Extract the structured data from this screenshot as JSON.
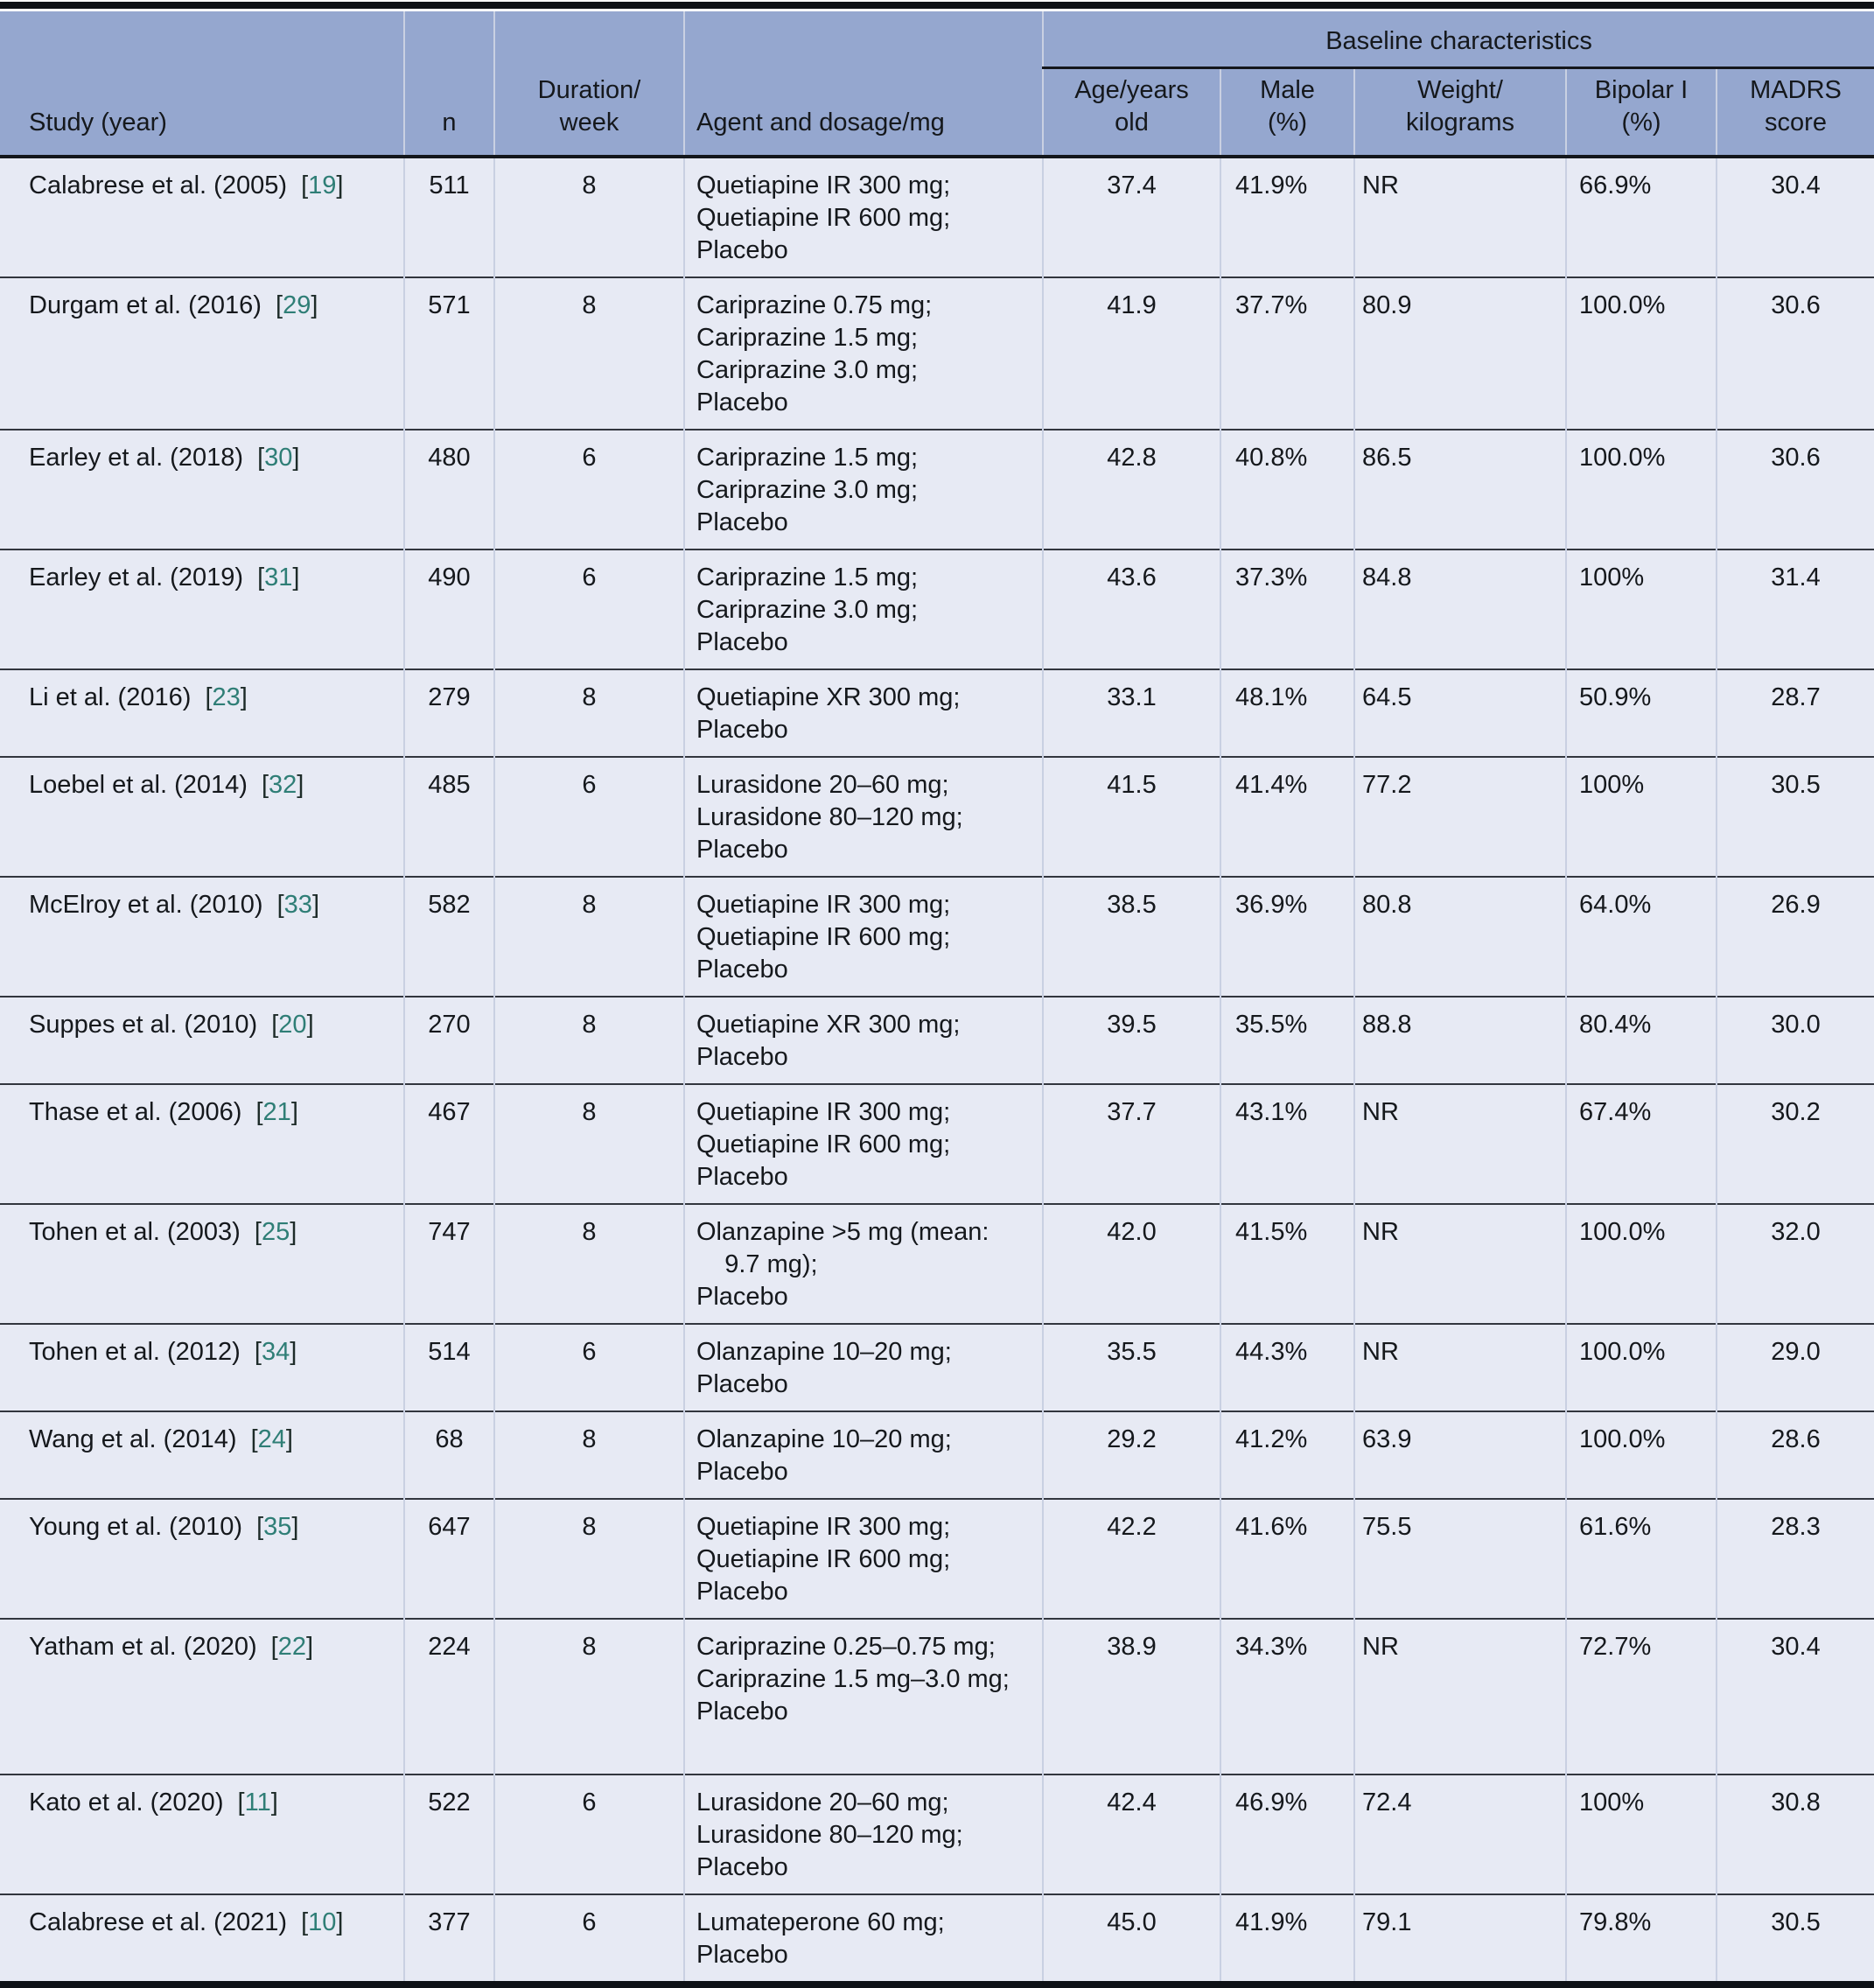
{
  "table": {
    "group_header": "Baseline characteristics",
    "ref_bracket_open": "[",
    "ref_bracket_close": "]",
    "columns": [
      {
        "lines": [
          "Study (year)"
        ]
      },
      {
        "lines": [
          "n"
        ]
      },
      {
        "lines": [
          "Duration/",
          "week"
        ]
      },
      {
        "lines": [
          "Agent and dosage/mg"
        ]
      },
      {
        "lines": [
          "Age/years",
          "old"
        ]
      },
      {
        "lines": [
          "Male",
          "(%)"
        ]
      },
      {
        "lines": [
          "Weight/",
          "kilograms"
        ]
      },
      {
        "lines": [
          "Bipolar I",
          "(%)"
        ]
      },
      {
        "lines": [
          "MADRS",
          "score"
        ]
      }
    ],
    "rows": [
      {
        "study": "Calabrese et al. (2005)",
        "ref": "19",
        "n": "511",
        "duration": "8",
        "agent_lines": [
          "Quetiapine IR 300 mg;",
          "Quetiapine IR 600 mg;",
          "Placebo"
        ],
        "age": "37.4",
        "male": "41.9%",
        "weight": "NR",
        "bipolar": "66.9%",
        "madrs": "30.4"
      },
      {
        "study": "Durgam et al. (2016)",
        "ref": "29",
        "n": "571",
        "duration": "8",
        "agent_lines": [
          "Cariprazine 0.75 mg;",
          "Cariprazine 1.5 mg;",
          "Cariprazine 3.0 mg;",
          "Placebo"
        ],
        "age": "41.9",
        "male": "37.7%",
        "weight": "80.9",
        "bipolar": "100.0%",
        "madrs": "30.6"
      },
      {
        "study": "Earley et al. (2018)",
        "ref": "30",
        "n": "480",
        "duration": "6",
        "agent_lines": [
          "Cariprazine 1.5 mg;",
          "Cariprazine 3.0 mg;",
          "Placebo"
        ],
        "age": "42.8",
        "male": "40.8%",
        "weight": "86.5",
        "bipolar": "100.0%",
        "madrs": "30.6"
      },
      {
        "study": "Earley et al. (2019)",
        "ref": "31",
        "n": "490",
        "duration": "6",
        "agent_lines": [
          "Cariprazine 1.5 mg;",
          "Cariprazine 3.0 mg;",
          "Placebo"
        ],
        "age": "43.6",
        "male": "37.3%",
        "weight": "84.8",
        "bipolar": "100%",
        "madrs": "31.4"
      },
      {
        "study": "Li et al. (2016)",
        "ref": "23",
        "n": "279",
        "duration": "8",
        "agent_lines": [
          "Quetiapine XR 300 mg;",
          "Placebo"
        ],
        "age": "33.1",
        "male": "48.1%",
        "weight": "64.5",
        "bipolar": "50.9%",
        "madrs": "28.7"
      },
      {
        "study": "Loebel et al. (2014)",
        "ref": "32",
        "n": "485",
        "duration": "6",
        "agent_lines": [
          "Lurasidone 20–60 mg;",
          "Lurasidone 80–120 mg;",
          "Placebo"
        ],
        "age": "41.5",
        "male": "41.4%",
        "weight": "77.2",
        "bipolar": "100%",
        "madrs": "30.5"
      },
      {
        "study": "McElroy et al. (2010)",
        "ref": "33",
        "n": "582",
        "duration": "8",
        "agent_lines": [
          "Quetiapine IR 300 mg;",
          "Quetiapine IR 600 mg;",
          "Placebo"
        ],
        "age": "38.5",
        "male": "36.9%",
        "weight": "80.8",
        "bipolar": "64.0%",
        "madrs": "26.9"
      },
      {
        "study": "Suppes et al. (2010)",
        "ref": "20",
        "n": "270",
        "duration": "8",
        "agent_lines": [
          "Quetiapine XR 300 mg;",
          "Placebo"
        ],
        "age": "39.5",
        "male": "35.5%",
        "weight": "88.8",
        "bipolar": "80.4%",
        "madrs": "30.0"
      },
      {
        "study": "Thase et al. (2006)",
        "ref": "21",
        "n": "467",
        "duration": "8",
        "agent_lines": [
          "Quetiapine IR 300 mg;",
          "Quetiapine IR 600 mg;",
          "Placebo"
        ],
        "age": "37.7",
        "male": "43.1%",
        "weight": "NR",
        "bipolar": "67.4%",
        "madrs": "30.2"
      },
      {
        "study": "Tohen et al. (2003)",
        "ref": "25",
        "n": "747",
        "duration": "8",
        "agent_lines": [
          "Olanzapine >5 mg (mean:",
          "    9.7 mg);",
          "Placebo"
        ],
        "age": "42.0",
        "male": "41.5%",
        "weight": "NR",
        "bipolar": "100.0%",
        "madrs": "32.0"
      },
      {
        "study": "Tohen et al. (2012)",
        "ref": "34",
        "n": "514",
        "duration": "6",
        "agent_lines": [
          "Olanzapine 10–20 mg;",
          "Placebo"
        ],
        "age": "35.5",
        "male": "44.3%",
        "weight": "NR",
        "bipolar": "100.0%",
        "madrs": "29.0"
      },
      {
        "study": "Wang et al. (2014)",
        "ref": "24",
        "n": "68",
        "duration": "8",
        "agent_lines": [
          "Olanzapine 10–20 mg;",
          "Placebo"
        ],
        "age": "29.2",
        "male": "41.2%",
        "weight": "63.9",
        "bipolar": "100.0%",
        "madrs": "28.6"
      },
      {
        "study": "Young et al. (2010)",
        "ref": "35",
        "n": "647",
        "duration": "8",
        "agent_lines": [
          "Quetiapine IR 300 mg;",
          "Quetiapine IR 600 mg;",
          "Placebo"
        ],
        "age": "42.2",
        "male": "41.6%",
        "weight": "75.5",
        "bipolar": "61.6%",
        "madrs": "28.3"
      },
      {
        "study": "Yatham et al. (2020)",
        "ref": "22",
        "n": "224",
        "duration": "8",
        "agent_lines": [
          "Cariprazine 0.25–0.75 mg;",
          "Cariprazine 1.5 mg–3.0 mg;",
          "Placebo"
        ],
        "age": "38.9",
        "male": "34.3%",
        "weight": "NR",
        "bipolar": "72.7%",
        "madrs": "30.4"
      },
      {
        "study": "Kato et al. (2020)",
        "ref": "11",
        "n": "522",
        "duration": "6",
        "agent_lines": [
          "Lurasidone 20–60 mg;",
          "Lurasidone 80–120 mg;",
          "Placebo"
        ],
        "age": "42.4",
        "male": "46.9%",
        "weight": "72.4",
        "bipolar": "100%",
        "madrs": "30.8"
      },
      {
        "study": "Calabrese et al. (2021)",
        "ref": "10",
        "n": "377",
        "duration": "6",
        "agent_lines": [
          "Lumateperone 60 mg;",
          "Placebo"
        ],
        "age": "45.0",
        "male": "41.9%",
        "weight": "79.1",
        "bipolar": "79.8%",
        "madrs": "30.5"
      }
    ]
  },
  "colors": {
    "header_background": "#95a7cf",
    "body_background": "#e7eaf4",
    "rule_dark": "#14171c",
    "citation_teal": "#2f7e76",
    "column_separator": "#c9d0e2"
  }
}
